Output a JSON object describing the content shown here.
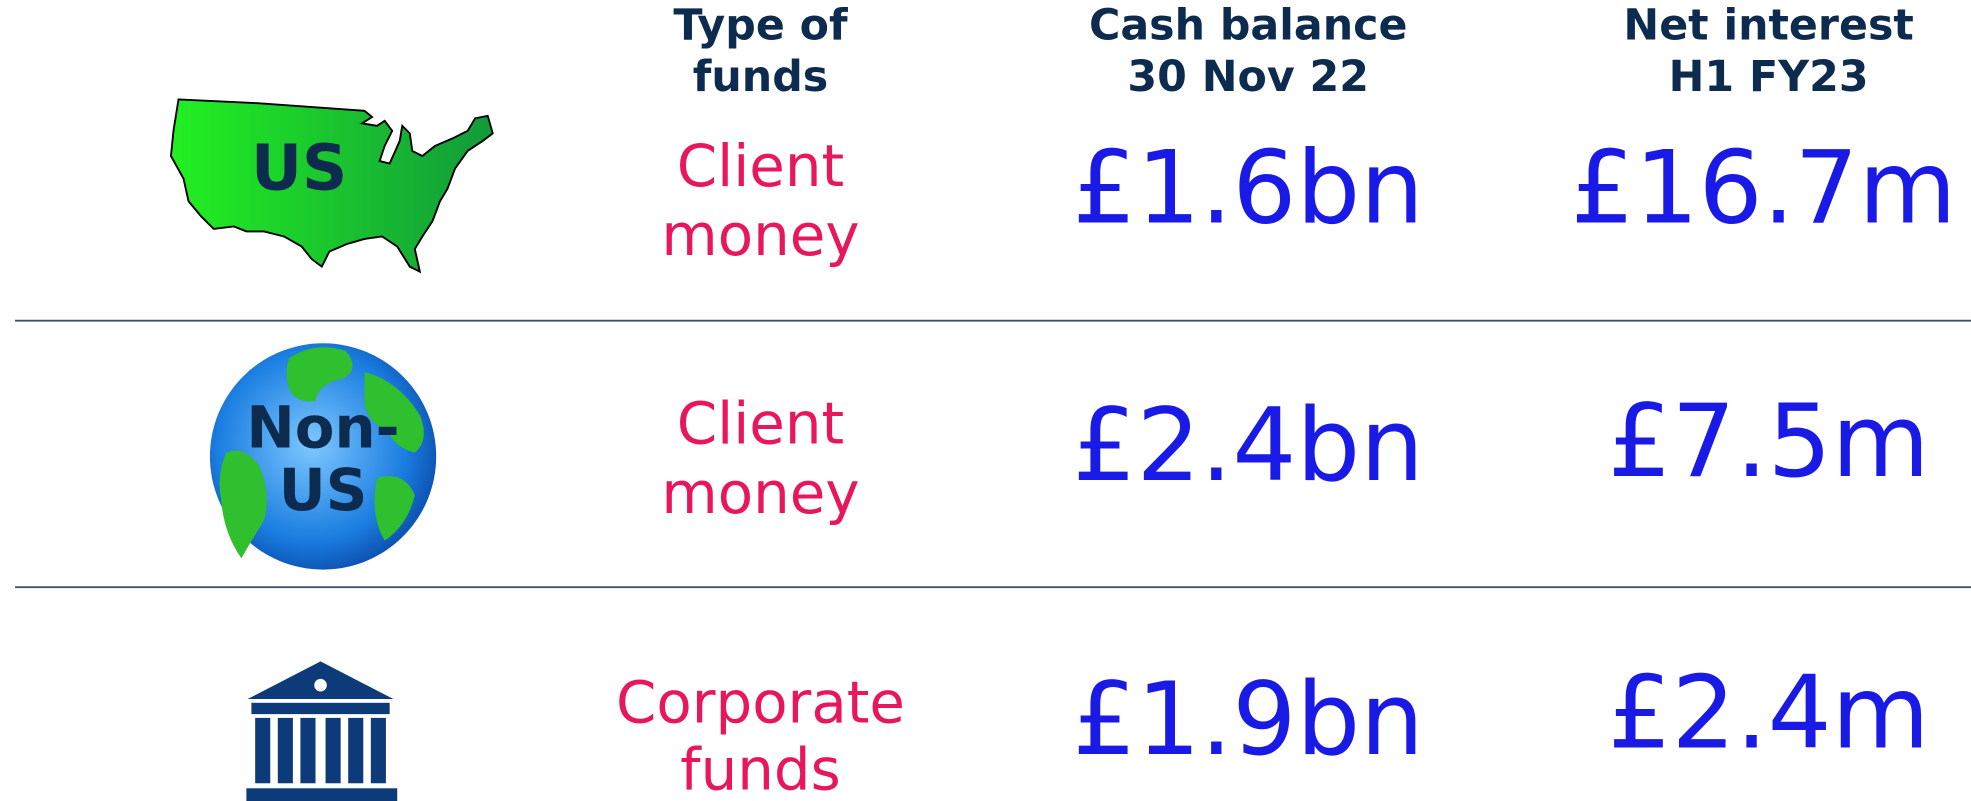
{
  "header": {
    "columns": [
      {
        "lines": [
          "Type of",
          "funds"
        ]
      },
      {
        "lines": [
          "Cash balance",
          "30 Nov 22"
        ]
      },
      {
        "lines": [
          "Net interest",
          "H1 FY23"
        ]
      }
    ]
  },
  "rows": [
    {
      "icon_label": [
        "US"
      ],
      "type": [
        "Client",
        "money"
      ],
      "cash_balance": "£1.6bn",
      "net_interest": "£16.7m"
    },
    {
      "icon_label": [
        "Non-",
        "US"
      ],
      "type": [
        "Client",
        "money"
      ],
      "cash_balance": "£2.4bn",
      "net_interest": "£7.5m"
    },
    {
      "type": [
        "Corporate",
        "funds"
      ],
      "cash_balance": "£1.9bn",
      "net_interest": "£2.4m"
    }
  ]
}
